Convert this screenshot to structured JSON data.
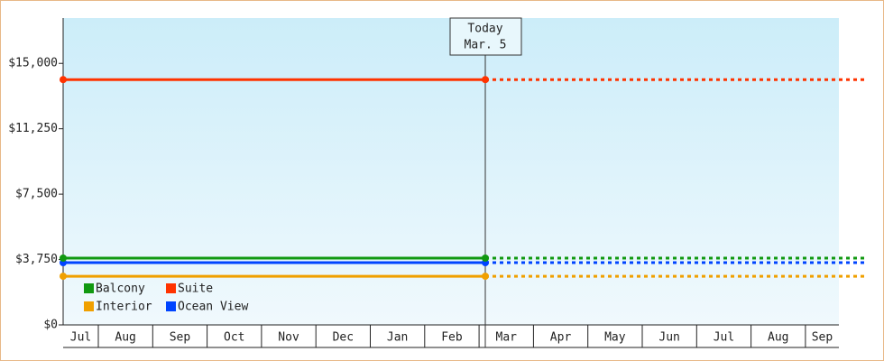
{
  "chart_data": {
    "type": "line",
    "today_label": "Today",
    "today_date": "Mar. 5",
    "categories": [
      "Jul",
      "Aug",
      "Sep",
      "Oct",
      "Nov",
      "Dec",
      "Jan",
      "Feb",
      "Mar",
      "Apr",
      "May",
      "Jun",
      "Jul",
      "Aug",
      "Sep"
    ],
    "series": [
      {
        "name": "Balcony",
        "color": "#119911",
        "value": 3830
      },
      {
        "name": "Suite",
        "color": "#ff3300",
        "value": 14070
      },
      {
        "name": "Interior",
        "color": "#f0a000",
        "value": 2790
      },
      {
        "name": "Ocean View",
        "color": "#0044ff",
        "value": 3570
      }
    ],
    "ylim": [
      0,
      17600
    ],
    "yticks": [
      {
        "value": 0,
        "label": "$0"
      },
      {
        "value": 3750,
        "label": "$3,750"
      },
      {
        "value": 7500,
        "label": "$7,500"
      },
      {
        "value": 11250,
        "label": "$11,250"
      },
      {
        "value": 15000,
        "label": "$15,000"
      }
    ]
  }
}
